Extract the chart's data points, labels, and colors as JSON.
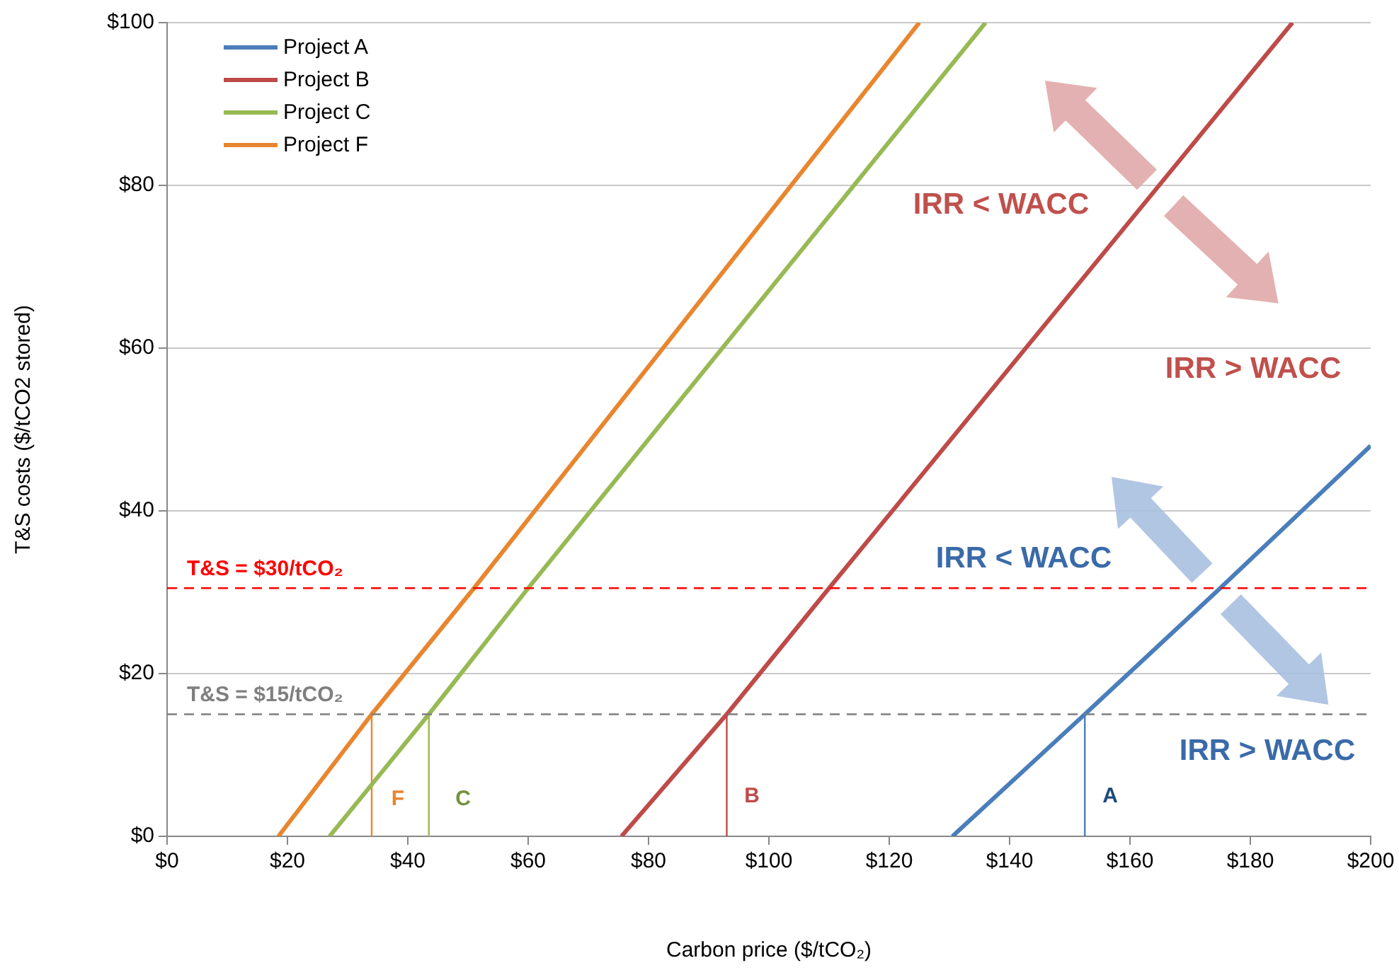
{
  "chart_data": {
    "type": "line",
    "xlabel": "Carbon price ($/tCO₂)",
    "ylabel": "T&S costs ($/tCO2 stored)",
    "series": [
      {
        "name": "Project A",
        "color": "#4a7ebb",
        "x": [
          130.5,
          152.5,
          175,
          200
        ],
        "values": [
          0,
          15,
          30.5,
          48
        ]
      },
      {
        "name": "Project B",
        "color": "#be4b48",
        "x": [
          75.5,
          93,
          110,
          187
        ],
        "values": [
          0,
          15,
          30.5,
          100
        ]
      },
      {
        "name": "Project C",
        "color": "#98b954",
        "x": [
          27,
          43.5,
          60,
          136
        ],
        "values": [
          0,
          15,
          30.5,
          100
        ]
      },
      {
        "name": "Project F",
        "color": "#e8862f",
        "x": [
          18.5,
          34,
          51,
          125
        ],
        "values": [
          0,
          15,
          30.5,
          100
        ]
      },
      {
        "color": "#4a7ebb",
        "x": [
          152.5,
          152.5
        ],
        "values": [
          0,
          15
        ]
      },
      {
        "color": "#be4b48",
        "x": [
          93,
          93
        ],
        "values": [
          0,
          15
        ]
      },
      {
        "color": "#98b954",
        "x": [
          43.5,
          43.5
        ],
        "values": [
          0,
          15
        ]
      },
      {
        "color": "#e8862f",
        "x": [
          34,
          34
        ],
        "values": [
          0,
          15
        ]
      }
    ],
    "xlim": [
      0,
      200
    ],
    "xticks": [
      {
        "value": 0,
        "label": "$0"
      },
      {
        "value": 20,
        "label": "$20"
      },
      {
        "value": 40,
        "label": "$40"
      },
      {
        "value": 60,
        "label": "$60"
      },
      {
        "value": 80,
        "label": "$80"
      },
      {
        "value": 100,
        "label": "$100"
      },
      {
        "value": 120,
        "label": "$120"
      },
      {
        "value": 140,
        "label": "$140"
      },
      {
        "value": 160,
        "label": "$160"
      },
      {
        "value": 180,
        "label": "$180"
      },
      {
        "value": 200,
        "label": "$200"
      }
    ],
    "ylim": [
      0,
      100
    ],
    "yticks": [
      {
        "value": 0,
        "label": "$0"
      },
      {
        "value": 20,
        "label": "$20"
      },
      {
        "value": 40,
        "label": "$40"
      },
      {
        "value": 60,
        "label": "$60"
      },
      {
        "value": 80,
        "label": "$80"
      },
      {
        "value": 100,
        "label": "$100"
      }
    ],
    "ref_lines": [
      {
        "axis": "y",
        "value": 30.5,
        "label": "T&S = $30/tCO₂",
        "color": "#ff0000",
        "line_style": "dashed"
      },
      {
        "axis": "y",
        "value": 15,
        "label": "T&S = $15/tCO₂",
        "color": "#7f7f7f",
        "line_style": "dashed"
      }
    ],
    "annotations": [
      "A",
      "B",
      "C",
      "F",
      "IRR < WACC",
      "IRR > WACC",
      "IRR < WACC",
      "IRR > WACC"
    ],
    "grid": "y",
    "legend": "top left",
    "marker": "none",
    "line_style": "solid"
  }
}
